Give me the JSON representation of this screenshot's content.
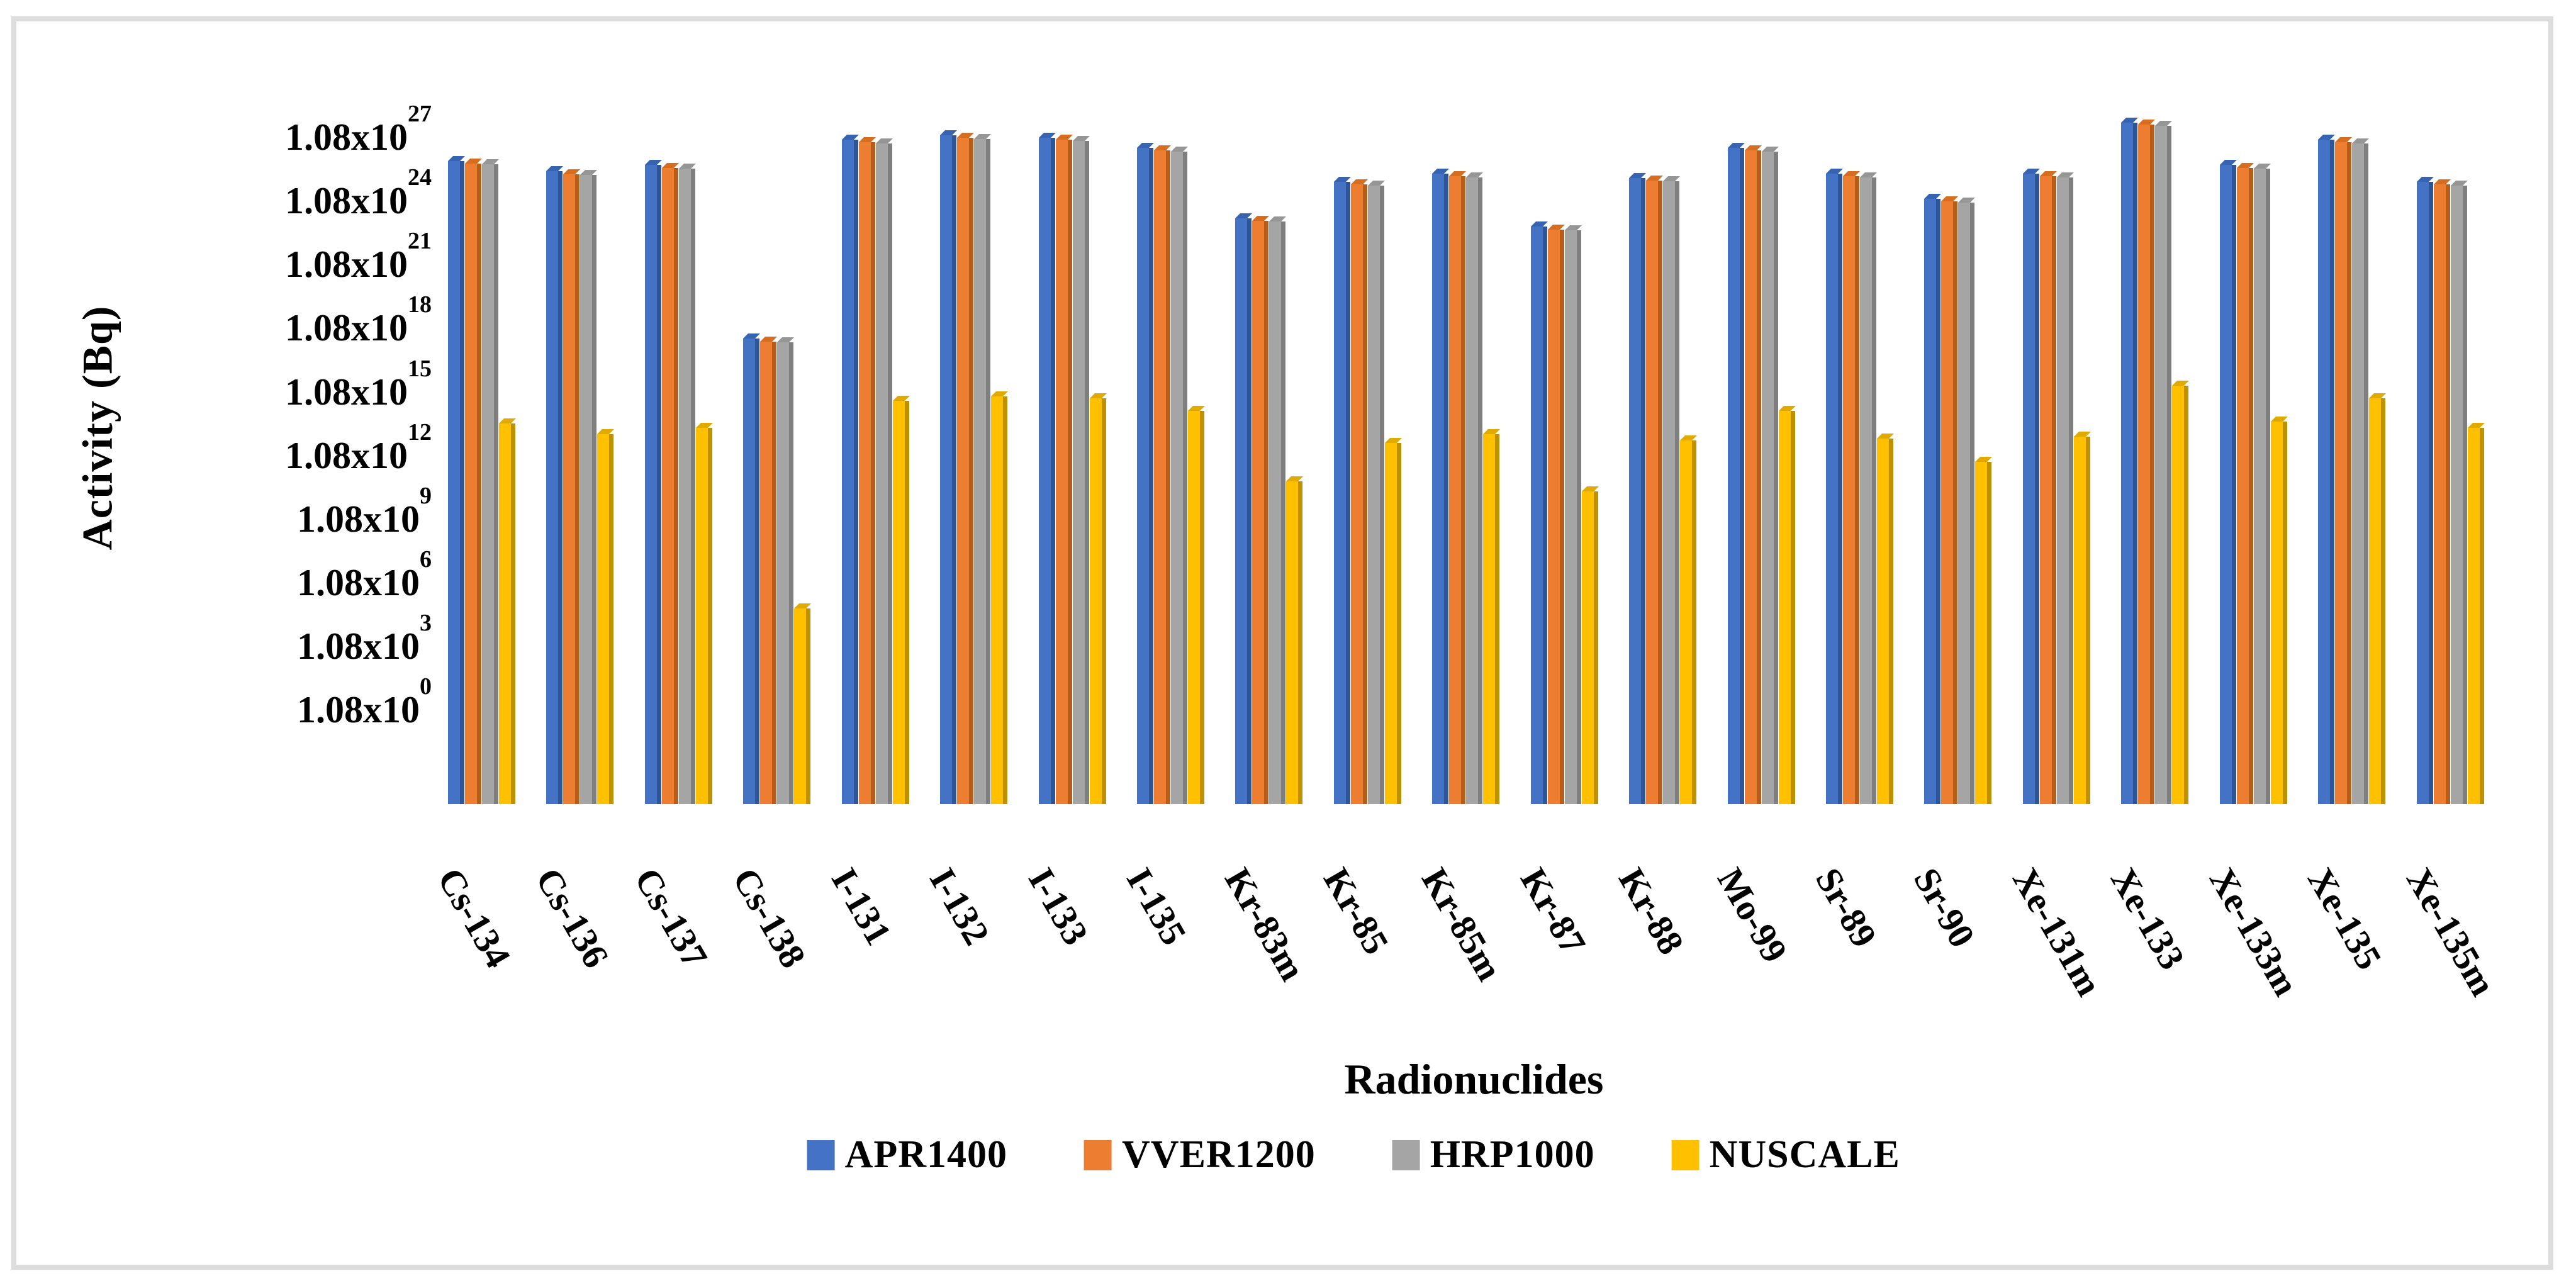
{
  "figure": {
    "background": "#ffffff",
    "border_color": "#dcdcdc"
  },
  "chart_data": {
    "type": "bar",
    "title": "",
    "xlabel": "Radionuclides",
    "ylabel": "Activity (Bq)",
    "y_scale": "log",
    "grid": "off",
    "legend_position": "bottom",
    "y_tick_prefix": "1.08x10",
    "y_tick_exponents": [
      27,
      24,
      21,
      18,
      15,
      12,
      9,
      6,
      3,
      0
    ],
    "categories": [
      "Cs-134",
      "Cs-136",
      "Cs-137",
      "Cs-138",
      "I-131",
      "I-132",
      "I-133",
      "I-135",
      "Kr-83m",
      "Kr-85",
      "Kr-85m",
      "Kr-87",
      "Kr-88",
      "Mo-99",
      "Sr-89",
      "Sr-90",
      "Xe-131m",
      "Xe-133",
      "Xe-133m",
      "Xe-135",
      "Xe-135m"
    ],
    "series": [
      {
        "name": "APR1400",
        "color": "#4472C4",
        "edge_color": "#2E5596",
        "values": [
          3.4e+25,
          1.1e+25,
          2.2e+25,
          1.4e+17,
          3.4e+26,
          5.4e+26,
          4.3e+26,
          1.4e+26,
          6.8e+22,
          3.4e+24,
          8.6e+24,
          2.7e+22,
          5.4e+24,
          1.4e+26,
          8.6e+24,
          5.4e+23,
          8.6e+24,
          2.2e+27,
          2.2e+25,
          3.4e+26,
          3.4e+24
        ]
      },
      {
        "name": "VVER1200",
        "color": "#ED7D31",
        "edge_color": "#B65D1A",
        "values": [
          2.6e+25,
          8.2e+24,
          1.6e+25,
          1e+17,
          2.6e+26,
          4.1e+26,
          3.3e+26,
          1.1e+26,
          5.2e+22,
          2.6e+24,
          6.5e+24,
          2e+22,
          4.1e+24,
          1.1e+26,
          6.5e+24,
          4.1e+23,
          6.5e+24,
          1.7e+27,
          1.6e+25,
          2.6e+26,
          2.6e+24
        ]
      },
      {
        "name": "HRP1000",
        "color": "#A5A5A5",
        "edge_color": "#7F7F7F",
        "values": [
          2.3e+25,
          7.4e+24,
          1.5e+25,
          9.5e+16,
          2.3e+26,
          3.7e+26,
          2.9e+26,
          9.5e+25,
          4.6e+22,
          2.3e+24,
          5.8e+24,
          1.8e+22,
          3.7e+24,
          9.5e+25,
          5.8e+24,
          3.7e+23,
          5.8e+24,
          1.5e+27,
          1.5e+25,
          2.3e+26,
          2.3e+24
        ]
      },
      {
        "name": "NUSCALE",
        "color": "#FFC000",
        "edge_color": "#BF9000",
        "values": [
          14000000000000.0,
          4300000000000.0,
          8600000000000.0,
          27000.0,
          170000000000000.0,
          270000000000000.0,
          220000000000000.0,
          54000000000000.0,
          27000000000.0,
          1700000000000.0,
          4300000000000.0,
          8600000000.0,
          2200000000000.0,
          54000000000000.0,
          2700000000000.0,
          220000000000.0,
          3400000000000.0,
          860000000000000.0,
          17000000000000.0,
          220000000000000.0,
          8600000000000.0
        ]
      }
    ]
  }
}
